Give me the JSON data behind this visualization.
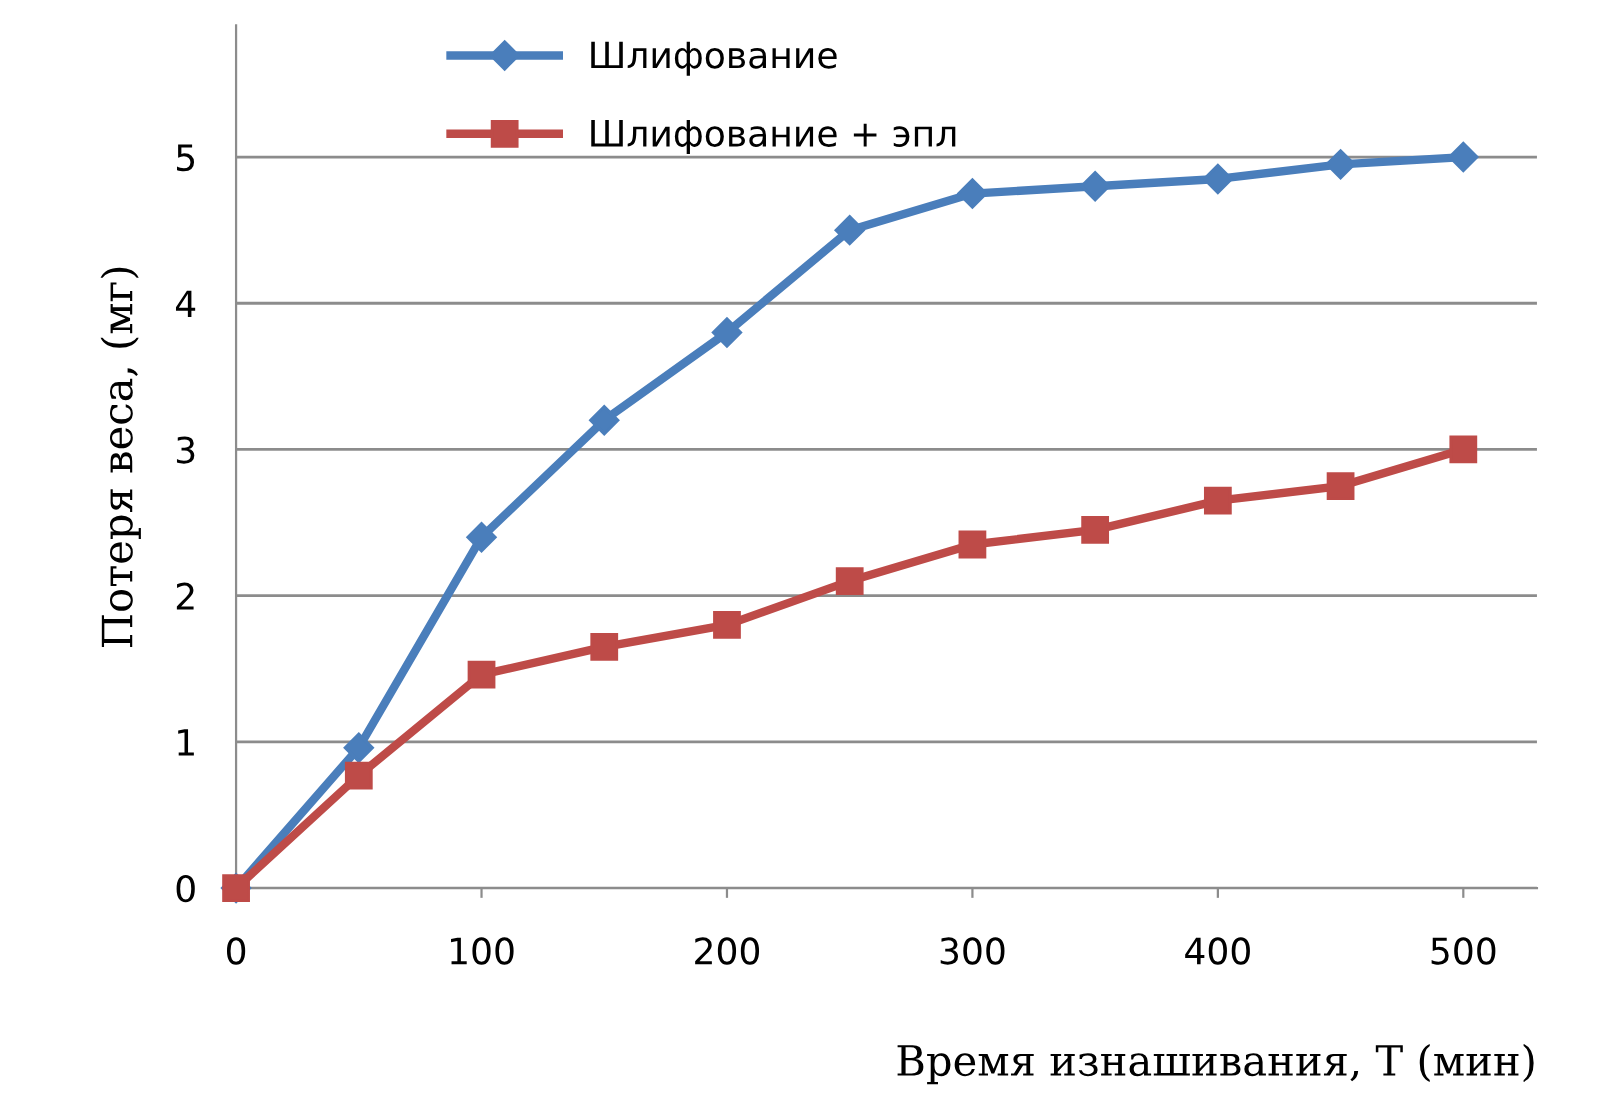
{
  "chart_data": {
    "type": "line",
    "xlabel": "Время изнашивания, Т (мин)",
    "ylabel": "Потеря веса, (мг)",
    "x": [
      0,
      50,
      100,
      150,
      200,
      250,
      300,
      350,
      400,
      450,
      500
    ],
    "series": [
      {
        "name": "Шлифование",
        "color": "#4a7ebb",
        "marker": "diamond",
        "values": [
          0,
          0.96,
          2.4,
          3.2,
          3.8,
          4.5,
          4.75,
          4.8,
          4.85,
          4.95,
          5.0
        ]
      },
      {
        "name": "Шлифование + эпл",
        "color": "#be4b48",
        "marker": "square",
        "values": [
          0,
          0.77,
          1.46,
          1.65,
          1.8,
          2.1,
          2.35,
          2.45,
          2.65,
          2.75,
          3.0
        ]
      }
    ],
    "xlim": [
      0,
      530
    ],
    "ylim": [
      0,
      5.9
    ],
    "xticks": [
      0,
      100,
      200,
      300,
      400,
      500
    ],
    "yticks": [
      0,
      1,
      2,
      3,
      4,
      5
    ],
    "grid": "y",
    "legend": "top",
    "line_style": "solid"
  }
}
